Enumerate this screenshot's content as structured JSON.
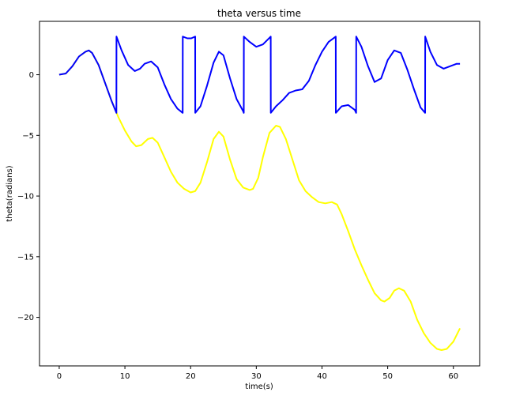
{
  "chart_data": {
    "type": "line",
    "title": "theta versus time",
    "xlabel": "time(s)",
    "ylabel": "theta(radians)",
    "xlim": [
      -3,
      64
    ],
    "ylim": [
      -24,
      4.4
    ],
    "xticks": [
      0,
      10,
      20,
      30,
      40,
      50,
      60
    ],
    "yticks": [
      0,
      -5,
      -10,
      -15,
      -20
    ],
    "ytick_labels": [
      "0",
      "−5",
      "−10",
      "−15",
      "−20"
    ],
    "grid": false,
    "series": [
      {
        "color": "#ffff00",
        "x": [
          0,
          1,
          2,
          3,
          4,
          4.5,
          5,
          6,
          7,
          8,
          9,
          10,
          11,
          11.7,
          12.5,
          13.5,
          14.2,
          15,
          16,
          17,
          18,
          19,
          20,
          20.7,
          21.5,
          22.5,
          23.5,
          24.3,
          25,
          26,
          27,
          28,
          29,
          29.5,
          30.3,
          31,
          32,
          33,
          33.6,
          34.5,
          35.5,
          36.5,
          37.5,
          38.5,
          39.5,
          40.5,
          41.5,
          42.3,
          43,
          44,
          45,
          46,
          47,
          48,
          49,
          49.5,
          50.3,
          51,
          51.7,
          52.5,
          53.5,
          54.5,
          55.5,
          56.5,
          57.5,
          58.2,
          59,
          60,
          61
        ],
        "y": [
          0,
          0.1,
          0.7,
          1.5,
          1.9,
          2.0,
          1.8,
          0.8,
          -0.7,
          -2.2,
          -3.5,
          -4.6,
          -5.5,
          -5.9,
          -5.8,
          -5.3,
          -5.2,
          -5.6,
          -6.8,
          -8.0,
          -8.9,
          -9.4,
          -9.7,
          -9.6,
          -8.9,
          -7.2,
          -5.3,
          -4.7,
          -5.1,
          -7.0,
          -8.6,
          -9.3,
          -9.5,
          -9.4,
          -8.5,
          -6.8,
          -4.8,
          -4.2,
          -4.3,
          -5.3,
          -7.0,
          -8.7,
          -9.6,
          -10.1,
          -10.5,
          -10.6,
          -10.5,
          -10.7,
          -11.5,
          -12.9,
          -14.4,
          -15.7,
          -16.9,
          -18.0,
          -18.6,
          -18.7,
          -18.4,
          -17.8,
          -17.6,
          -17.8,
          -18.7,
          -20.2,
          -21.3,
          -22.1,
          -22.6,
          -22.7,
          -22.6,
          -22.0,
          -20.9
        ]
      },
      {
        "color": "#0000ff",
        "x": [
          0,
          1,
          2,
          3,
          4,
          4.5,
          5,
          6,
          7,
          8,
          8.7,
          8.71,
          9.5,
          10.5,
          11.5,
          12.3,
          13,
          14,
          15,
          16,
          17,
          18,
          18.8,
          18.81,
          19.5,
          20.1,
          20.7,
          20.71,
          21.5,
          22.5,
          23.5,
          24.3,
          25,
          26,
          27,
          28,
          28.1,
          28.11,
          29,
          30,
          31,
          32.2,
          32.21,
          33,
          34,
          35,
          36,
          37,
          38,
          39,
          40,
          41,
          42.1,
          42.11,
          43,
          44,
          45,
          45.2,
          45.21,
          46,
          47,
          48,
          49,
          50,
          51,
          52,
          53,
          54,
          55,
          55.7,
          55.71,
          56.5,
          57.5,
          58.5,
          59.5,
          60.5,
          61
        ],
        "y": [
          0,
          0.1,
          0.7,
          1.5,
          1.9,
          2.0,
          1.8,
          0.8,
          -0.7,
          -2.2,
          -3.14,
          3.14,
          2.0,
          0.8,
          0.3,
          0.5,
          0.9,
          1.1,
          0.6,
          -0.8,
          -2.0,
          -2.8,
          -3.14,
          3.14,
          3.0,
          3.0,
          3.14,
          -3.14,
          -2.6,
          -0.9,
          1.0,
          1.9,
          1.6,
          -0.3,
          -2.0,
          -3.0,
          -3.14,
          3.14,
          2.7,
          2.3,
          2.5,
          3.14,
          -3.14,
          -2.6,
          -2.1,
          -1.5,
          -1.3,
          -1.2,
          -0.5,
          0.8,
          1.9,
          2.7,
          3.14,
          -3.14,
          -2.6,
          -2.5,
          -2.9,
          -3.14,
          3.14,
          2.3,
          0.7,
          -0.6,
          -0.3,
          1.2,
          2.0,
          1.8,
          0.4,
          -1.2,
          -2.7,
          -3.14,
          3.14,
          1.9,
          0.8,
          0.5,
          0.7,
          0.9,
          0.9
        ]
      }
    ]
  }
}
